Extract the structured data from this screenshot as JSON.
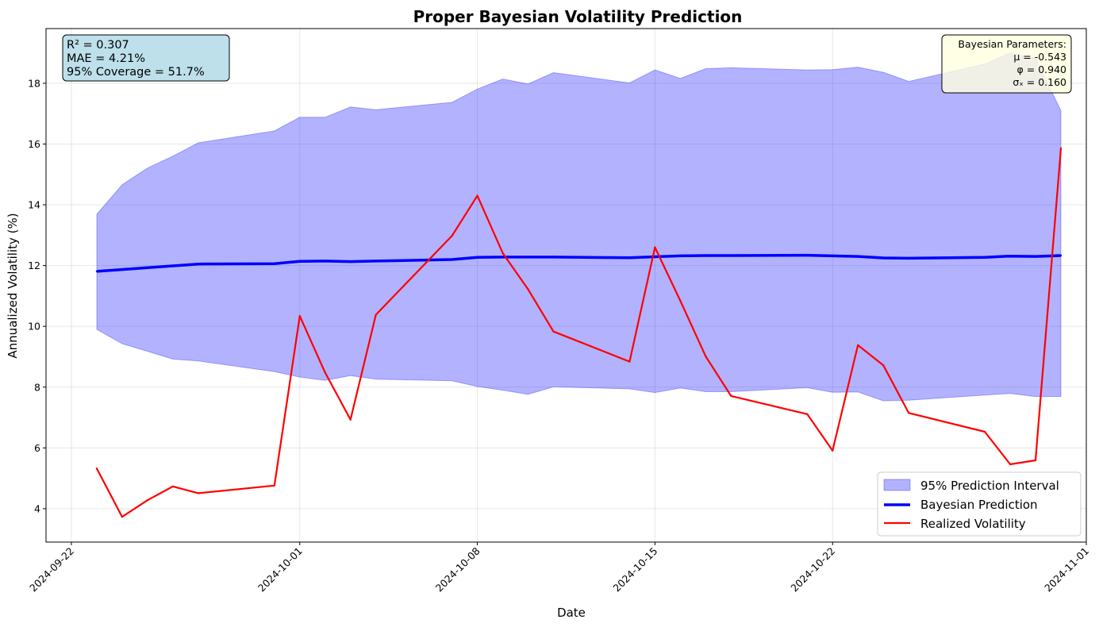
{
  "chart_data": {
    "type": "line",
    "title": "Proper Bayesian Volatility Prediction",
    "xlabel": "Date",
    "ylabel": "Annualized Volatility (%)",
    "xlim": [
      "2024-09-21",
      "2024-11-01"
    ],
    "ylim": [
      2.9,
      19.8
    ],
    "grid": true,
    "x_ticks": [
      "2024-09-22",
      "2024-10-01",
      "2024-10-08",
      "2024-10-15",
      "2024-10-22",
      "2024-11-01"
    ],
    "y_ticks": [
      4,
      6,
      8,
      10,
      12,
      14,
      16,
      18
    ],
    "x": [
      "2024-09-23",
      "2024-09-24",
      "2024-09-25",
      "2024-09-26",
      "2024-09-27",
      "2024-09-30",
      "2024-10-01",
      "2024-10-02",
      "2024-10-03",
      "2024-10-04",
      "2024-10-07",
      "2024-10-08",
      "2024-10-09",
      "2024-10-10",
      "2024-10-11",
      "2024-10-14",
      "2024-10-15",
      "2024-10-16",
      "2024-10-17",
      "2024-10-18",
      "2024-10-21",
      "2024-10-22",
      "2024-10-23",
      "2024-10-24",
      "2024-10-25",
      "2024-10-28",
      "2024-10-29",
      "2024-10-30",
      "2024-10-31"
    ],
    "series": [
      {
        "name": "Bayesian Prediction",
        "kind": "line",
        "color": "#0000ff",
        "values": [
          11.81,
          11.87,
          11.93,
          11.99,
          12.05,
          12.06,
          12.14,
          12.15,
          12.13,
          12.15,
          12.2,
          12.27,
          12.28,
          12.28,
          12.28,
          12.26,
          12.29,
          12.32,
          12.33,
          12.33,
          12.34,
          12.32,
          12.3,
          12.25,
          12.24,
          12.27,
          12.31,
          12.3,
          12.33
        ]
      },
      {
        "name": "Realized Volatility",
        "kind": "line",
        "color": "#ff0000",
        "values": [
          5.32,
          3.73,
          4.28,
          4.73,
          4.51,
          4.76,
          10.34,
          8.48,
          6.93,
          10.38,
          12.98,
          14.3,
          12.41,
          11.22,
          9.83,
          8.84,
          12.6,
          10.84,
          9.01,
          7.71,
          7.11,
          5.91,
          9.38,
          8.72,
          7.15,
          6.53,
          5.46,
          5.59,
          15.86
        ]
      },
      {
        "name": "95% Prediction Interval",
        "kind": "band",
        "color": "#0000ff",
        "upper": [
          13.69,
          14.66,
          15.21,
          15.6,
          16.04,
          16.43,
          16.88,
          16.88,
          17.22,
          17.13,
          17.37,
          17.81,
          18.14,
          17.98,
          18.35,
          18.01,
          18.44,
          18.16,
          18.48,
          18.51,
          18.44,
          18.45,
          18.53,
          18.36,
          18.06,
          18.63,
          19.0,
          18.81,
          17.1
        ],
        "lower": [
          9.9,
          9.43,
          9.18,
          8.92,
          8.86,
          8.51,
          8.33,
          8.22,
          8.38,
          8.26,
          8.21,
          8.02,
          7.9,
          7.76,
          8.01,
          7.94,
          7.82,
          7.97,
          7.85,
          7.85,
          7.98,
          7.83,
          7.84,
          7.55,
          7.57,
          7.74,
          7.79,
          7.69,
          7.69
        ]
      }
    ],
    "legend": {
      "position": "lower-right",
      "entries": [
        "95% Prediction Interval",
        "Bayesian Prediction",
        "Realized Volatility"
      ]
    },
    "annotations": {
      "metrics": [
        "R² = 0.307",
        "MAE = 4.21%",
        "95% Coverage = 51.7%"
      ],
      "parameters": [
        "Bayesian Parameters:",
        "μ = -0.543",
        "φ = 0.940",
        "σₓ = 0.160"
      ]
    },
    "colors": {
      "metrics_box": "#add8e6",
      "parameters_box": "#ffffe0"
    }
  }
}
